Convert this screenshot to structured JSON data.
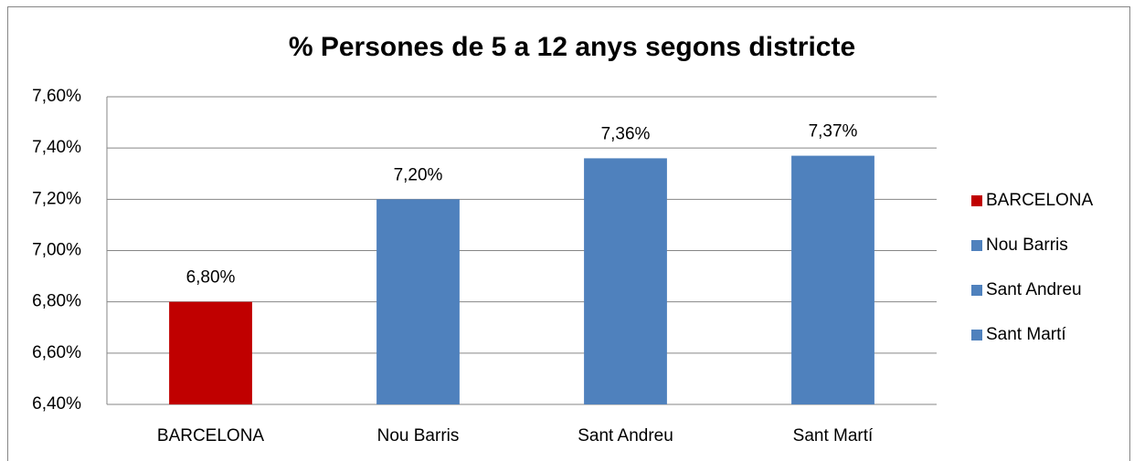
{
  "chart_data": {
    "type": "bar",
    "title": "% Persones de 5 a 12 anys segons districte",
    "categories": [
      "BARCELONA",
      "Nou Barris",
      "Sant Andreu",
      "Sant Martí"
    ],
    "values": [
      6.8,
      7.2,
      7.36,
      7.37
    ],
    "value_labels": [
      "6,80%",
      "7,20%",
      "7,36%",
      "7,37%"
    ],
    "colors": [
      "#c00000",
      "#4f81bd",
      "#4f81bd",
      "#4f81bd"
    ],
    "ylim": [
      6.4,
      7.6
    ],
    "yticks": [
      {
        "value": 6.4,
        "label": "6,40%"
      },
      {
        "value": 6.6,
        "label": "6,60%"
      },
      {
        "value": 6.8,
        "label": "6,80%"
      },
      {
        "value": 7.0,
        "label": "7,00%"
      },
      {
        "value": 7.2,
        "label": "7,20%"
      },
      {
        "value": 7.4,
        "label": "7,40%"
      },
      {
        "value": 7.6,
        "label": "7,60%"
      }
    ],
    "grid": true,
    "legend": "right"
  }
}
